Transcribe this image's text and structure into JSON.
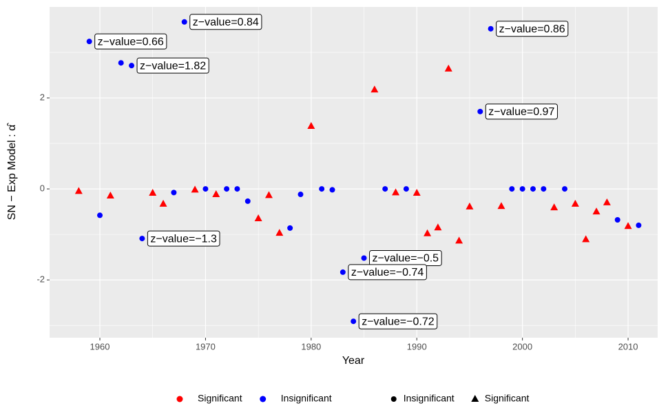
{
  "chart_data": {
    "type": "scatter",
    "x_label": "Year",
    "y_label": "SN − Exp Model : α̂",
    "x": [
      1958,
      1959,
      1960,
      1961,
      1962,
      1963,
      1964,
      1965,
      1966,
      1967,
      1968,
      1969,
      1970,
      1971,
      1972,
      1973,
      1974,
      1975,
      1976,
      1977,
      1978,
      1979,
      1980,
      1981,
      1982,
      1983,
      1984,
      1985,
      1986,
      1987,
      1988,
      1989,
      1990,
      1991,
      1992,
      1993,
      1994,
      1995,
      1996,
      1997,
      1998,
      1999,
      2000,
      2001,
      2002,
      2003,
      2004,
      2005,
      2006,
      2007,
      2008,
      2009,
      2010,
      2011
    ],
    "series": [
      {
        "name": "Significant",
        "color": "#ff0000",
        "shape": "triangle",
        "values": [
          -0.05,
          null,
          null,
          -0.15,
          null,
          null,
          null,
          -0.09,
          -0.33,
          null,
          null,
          -0.02,
          null,
          -0.12,
          null,
          null,
          null,
          -0.65,
          -0.14,
          -0.97,
          null,
          null,
          1.38,
          null,
          null,
          null,
          null,
          null,
          2.18,
          null,
          -0.08,
          null,
          -0.09,
          -0.98,
          -0.85,
          2.64,
          -1.14,
          -0.39,
          null,
          null,
          -0.38,
          null,
          null,
          null,
          null,
          -0.41,
          null,
          -0.33,
          -1.11,
          -0.5,
          -0.3,
          null,
          -0.82,
          null
        ]
      },
      {
        "name": "Insignificant",
        "color": "#0000ff",
        "shape": "circle",
        "values": [
          null,
          3.24,
          -0.58,
          null,
          2.77,
          2.71,
          -1.09,
          null,
          null,
          -0.08,
          3.67,
          null,
          0,
          null,
          0,
          0,
          -0.27,
          null,
          null,
          null,
          -0.86,
          -0.12,
          null,
          0,
          -0.02,
          -1.83,
          -2.91,
          -1.52,
          null,
          0,
          null,
          0,
          null,
          null,
          null,
          null,
          null,
          null,
          1.7,
          3.52,
          null,
          0,
          0,
          0,
          0,
          null,
          0,
          null,
          null,
          null,
          null,
          -0.68,
          null,
          -0.8
        ]
      }
    ],
    "annotations": [
      {
        "text": "z−value=0.66",
        "x": 1959
      },
      {
        "text": "z−value=0.84",
        "x": 1968
      },
      {
        "text": "z−value=1.82",
        "x": 1963
      },
      {
        "text": "z−value=0.86",
        "x": 1997
      },
      {
        "text": "z−value=0.97",
        "x": 1996
      },
      {
        "text": "z−value=−1.3",
        "x": 1964
      },
      {
        "text": "z−value=−0.5",
        "x": 1985
      },
      {
        "text": "z−value=−0.74",
        "x": 1983
      },
      {
        "text": "z−value=−0.72",
        "x": 1984
      }
    ],
    "xlim": [
      1955.24,
      2012.8
    ],
    "xticks": [
      1960,
      1970,
      1980,
      1990,
      2000,
      2010
    ],
    "ylim": [
      -3.27,
      4.0
    ],
    "yticks": [
      -2,
      0,
      2
    ],
    "grid": true,
    "legend": "bottom"
  }
}
